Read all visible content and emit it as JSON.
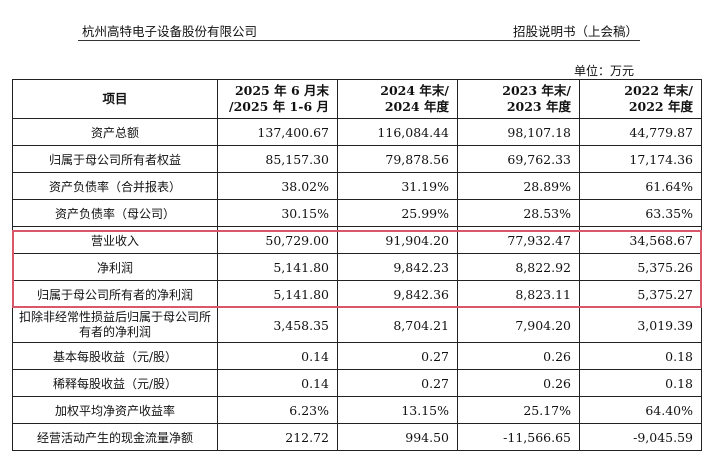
{
  "header": {
    "company": "杭州高特电子设备股份有限公司",
    "doc_type": "招股说明书（上会稿）"
  },
  "unit": "单位：万元",
  "table": {
    "columns": [
      {
        "line1": "项目",
        "line2": ""
      },
      {
        "line1": "2025 年 6 月末",
        "line2": "/2025 年 1-6 月"
      },
      {
        "line1": "2024 年末/",
        "line2": "2024 年度"
      },
      {
        "line1": "2023 年末/",
        "line2": "2023 年度"
      },
      {
        "line1": "2022 年末/",
        "line2": "2022 年度"
      }
    ],
    "rows": [
      {
        "label": "资产总额",
        "values": [
          "137,400.67",
          "116,084.44",
          "98,107.18",
          "44,779.87"
        ]
      },
      {
        "label": "归属于母公司所有者权益",
        "values": [
          "85,157.30",
          "79,878.56",
          "69,762.33",
          "17,174.36"
        ]
      },
      {
        "label": "资产负债率（合并报表）",
        "values": [
          "38.02%",
          "31.19%",
          "28.89%",
          "61.64%"
        ]
      },
      {
        "label": "资产负债率（母公司）",
        "values": [
          "30.15%",
          "25.99%",
          "28.53%",
          "63.35%"
        ]
      },
      {
        "label": "营业收入",
        "values": [
          "50,729.00",
          "91,904.20",
          "77,932.47",
          "34,568.67"
        ]
      },
      {
        "label": "净利润",
        "values": [
          "5,141.80",
          "9,842.23",
          "8,822.92",
          "5,375.26"
        ]
      },
      {
        "label": "归属于母公司所有者的净利润",
        "values": [
          "5,141.80",
          "9,842.36",
          "8,823.11",
          "5,375.27"
        ]
      },
      {
        "label": "扣除非经常性损益后归属于母公司所有者的净利润",
        "values": [
          "3,458.35",
          "8,704.21",
          "7,904.20",
          "3,019.39"
        ]
      },
      {
        "label": "基本每股收益（元/股）",
        "values": [
          "0.14",
          "0.27",
          "0.26",
          "0.18"
        ]
      },
      {
        "label": "稀释每股收益（元/股）",
        "values": [
          "0.14",
          "0.27",
          "0.26",
          "0.18"
        ]
      },
      {
        "label": "加权平均净资产收益率",
        "values": [
          "6.23%",
          "13.15%",
          "25.17%",
          "64.40%"
        ]
      },
      {
        "label": "经营活动产生的现金流量净额",
        "values": [
          "212.72",
          "994.50",
          "-11,566.65",
          "-9,045.59"
        ]
      }
    ]
  },
  "highlight_color": "#d8576a"
}
